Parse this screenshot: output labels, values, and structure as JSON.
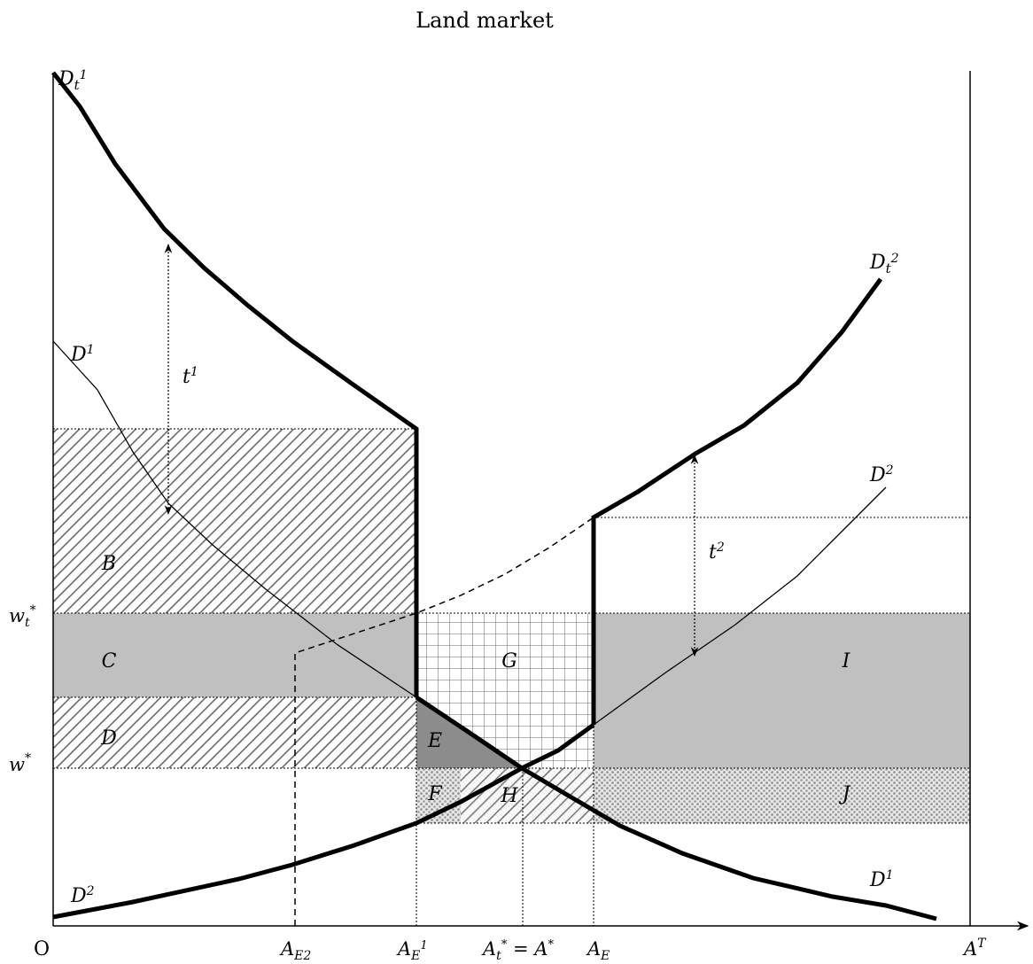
{
  "title": "Land market",
  "origin_label": "O",
  "curves": {
    "dt1": {
      "name": "D",
      "sub": "t",
      "sup": "1"
    },
    "dt2": {
      "name": "D",
      "sub": "t",
      "sup": "2"
    },
    "d1_top": {
      "name": "D",
      "sup": "1"
    },
    "d1_bottom": {
      "name": "D",
      "sup": "1"
    },
    "d2_top": {
      "name": "D",
      "sup": "2"
    },
    "d2_bottom": {
      "name": "D",
      "sup": "2"
    }
  },
  "wedges": {
    "t1": {
      "name": "t",
      "sup": "1"
    },
    "t2": {
      "name": "t",
      "sup": "2"
    }
  },
  "y_labels": {
    "wt_star": {
      "name": "w",
      "sub": "t",
      "sup": "*"
    },
    "w_star": {
      "name": "w",
      "sup": "*"
    }
  },
  "x_labels": {
    "ae2": {
      "name": "A",
      "sub": "E2"
    },
    "ae1": {
      "name": "A",
      "sub": "E",
      "sup": "1"
    },
    "at_star": {
      "name": "A",
      "sub": "t",
      "sup": "*",
      "eq": " = ",
      "rhs_name": "A",
      "rhs_sup": "*"
    },
    "ae": {
      "name": "A",
      "sub": "E"
    },
    "at": {
      "name": "A",
      "sup": "T"
    }
  },
  "areas": {
    "B": "B",
    "C": "C",
    "D": "D",
    "E": "E",
    "F": "F",
    "G": "G",
    "H": "H",
    "I": "I",
    "J": "J"
  },
  "colors": {
    "gray_band": "#c0c0c0",
    "dark_triangle": "#8c8c8c",
    "stroke": "#000000"
  }
}
